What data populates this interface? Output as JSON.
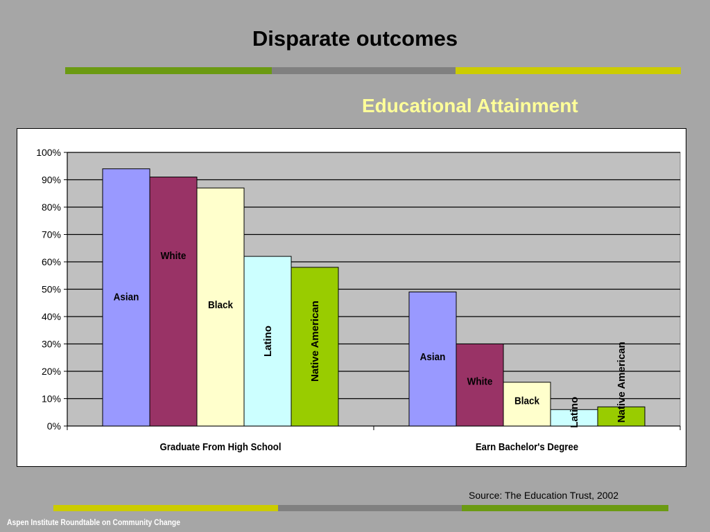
{
  "slide": {
    "title": "Disparate outcomes",
    "subtitle": "Educational Attainment",
    "source": "Source: The Education Trust, 2002",
    "footer": "Aspen Institute Roundtable on Community Change"
  },
  "colors": {
    "background": "#a6a6a6",
    "subtitle": "#ffff99",
    "stripe_green": "#6b9a12",
    "stripe_gray": "#808080",
    "stripe_yellow": "#cccc00",
    "plot_background": "#c0c0c0"
  },
  "chart_data": {
    "type": "bar",
    "title": "Educational Attainment",
    "categories": [
      "Graduate From High School",
      "Earn Bachelor's Degree"
    ],
    "series": [
      {
        "name": "Asian",
        "values": [
          94,
          49
        ],
        "color": "#9999ff"
      },
      {
        "name": "White",
        "values": [
          91,
          30
        ],
        "color": "#993366"
      },
      {
        "name": "Black",
        "values": [
          87,
          16
        ],
        "color": "#ffffcc"
      },
      {
        "name": "Latino",
        "values": [
          62,
          6
        ],
        "color": "#ccffff"
      },
      {
        "name": "Native American",
        "values": [
          58,
          7
        ],
        "color": "#99cc00"
      }
    ],
    "y_ticks": [
      "0%",
      "10%",
      "20%",
      "30%",
      "40%",
      "50%",
      "60%",
      "70%",
      "80%",
      "90%",
      "100%"
    ],
    "ylim": [
      0,
      100
    ],
    "grid": true,
    "legend": "none (labels on bars)",
    "xlabel": "",
    "ylabel": ""
  }
}
